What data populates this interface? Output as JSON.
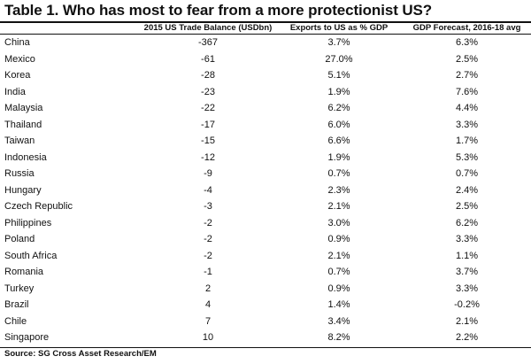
{
  "title": "Table 1. Who has most to fear from a more protectionist US?",
  "columns": [
    "",
    "2015 US Trade Balance (USDbn)",
    "Exports to US as % GDP",
    "GDP Forecast, 2016-18 avg"
  ],
  "rows": [
    [
      "China",
      "-367",
      "3.7%",
      "6.3%"
    ],
    [
      "Mexico",
      "-61",
      "27.0%",
      "2.5%"
    ],
    [
      "Korea",
      "-28",
      "5.1%",
      "2.7%"
    ],
    [
      "India",
      "-23",
      "1.9%",
      "7.6%"
    ],
    [
      "Malaysia",
      "-22",
      "6.2%",
      "4.4%"
    ],
    [
      "Thailand",
      "-17",
      "6.0%",
      "3.3%"
    ],
    [
      "Taiwan",
      "-15",
      "6.6%",
      "1.7%"
    ],
    [
      "Indonesia",
      "-12",
      "1.9%",
      "5.3%"
    ],
    [
      "Russia",
      "-9",
      "0.7%",
      "0.7%"
    ],
    [
      "Hungary",
      "-4",
      "2.3%",
      "2.4%"
    ],
    [
      "Czech Republic",
      "-3",
      "2.1%",
      "2.5%"
    ],
    [
      "Philippines",
      "-2",
      "3.0%",
      "6.2%"
    ],
    [
      "Poland",
      "-2",
      "0.9%",
      "3.3%"
    ],
    [
      "South Africa",
      "-2",
      "2.1%",
      "1.1%"
    ],
    [
      "Romania",
      "-1",
      "0.7%",
      "3.7%"
    ],
    [
      "Turkey",
      "2",
      "0.9%",
      "3.3%"
    ],
    [
      "Brazil",
      "4",
      "1.4%",
      "-0.2%"
    ],
    [
      "Chile",
      "7",
      "3.4%",
      "2.1%"
    ],
    [
      "Singapore",
      "10",
      "8.2%",
      "2.2%"
    ]
  ],
  "source": "Source: SG Cross Asset Research/EM"
}
